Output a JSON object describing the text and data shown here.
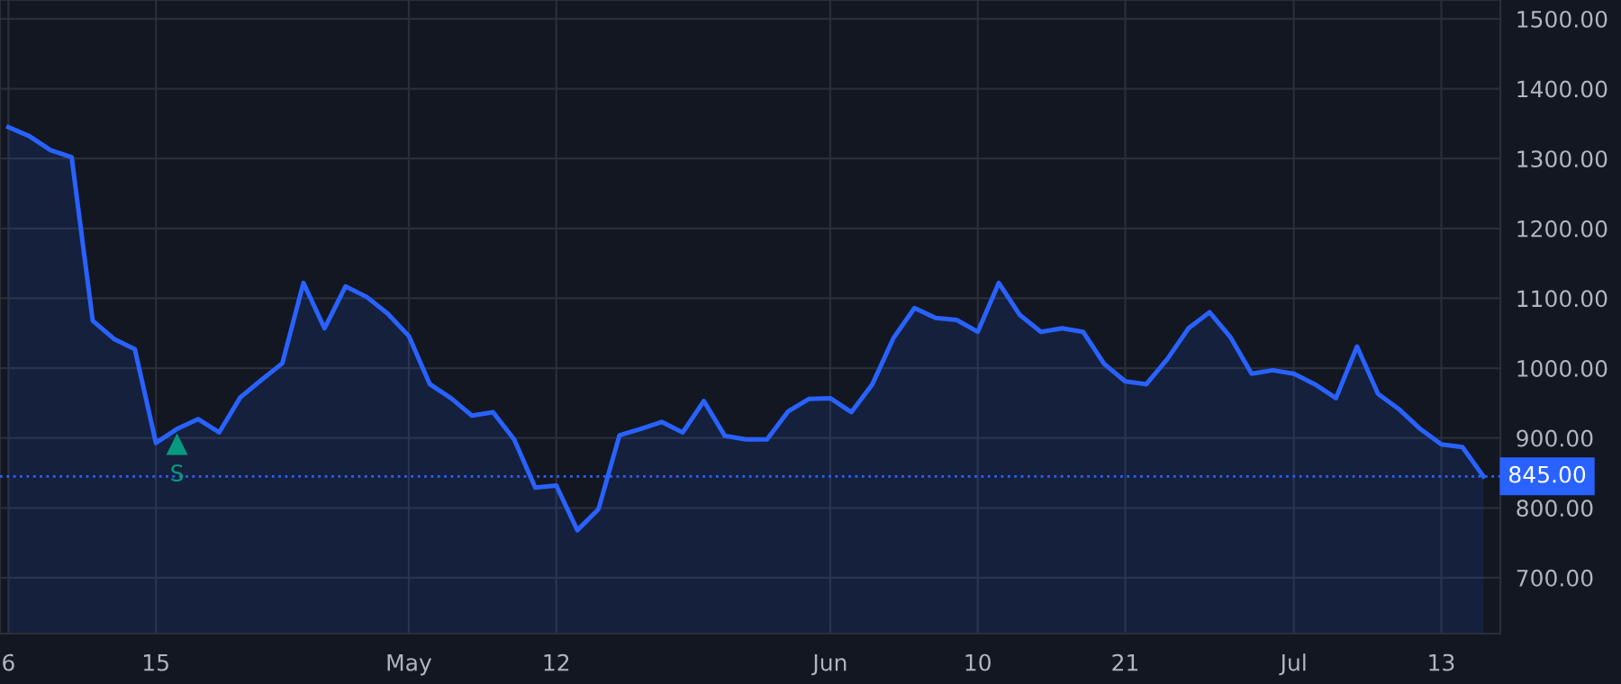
{
  "chart_data": {
    "type": "area",
    "categories": [
      "6",
      null,
      null,
      null,
      null,
      null,
      null,
      "15",
      null,
      null,
      null,
      null,
      null,
      null,
      null,
      null,
      null,
      null,
      null,
      "May",
      null,
      null,
      null,
      null,
      null,
      null,
      "12",
      null,
      null,
      null,
      null,
      null,
      null,
      null,
      null,
      null,
      null,
      null,
      null,
      "Jun",
      null,
      null,
      null,
      null,
      null,
      null,
      "10",
      null,
      null,
      null,
      null,
      null,
      null,
      "21",
      null,
      null,
      null,
      null,
      null,
      null,
      null,
      "Jul",
      null,
      null,
      null,
      null,
      null,
      null,
      "13",
      null,
      null
    ],
    "series": [
      {
        "color": "#2962ff",
        "values": [
          1345,
          1332,
          1312,
          1302,
          1068,
          1042,
          1027,
          893,
          913,
          927,
          908,
          958,
          983,
          1007,
          1122,
          1057,
          1117,
          1102,
          1078,
          1046,
          977,
          957,
          932,
          937,
          898,
          829,
          832,
          768,
          798,
          904,
          913,
          923,
          908,
          953,
          903,
          898,
          898,
          938,
          956,
          957,
          937,
          977,
          1043,
          1086,
          1072,
          1069,
          1052,
          1122,
          1076,
          1052,
          1057,
          1052,
          1006,
          981,
          977,
          1013,
          1057,
          1080,
          1044,
          992,
          997,
          992,
          977,
          957,
          1031,
          963,
          941,
          913,
          891,
          887,
          845
        ]
      },
      {
        "type": "scatter",
        "marker": "triangle",
        "color": "#089981",
        "values": [
          null,
          null,
          null,
          null,
          null,
          null,
          null,
          null,
          890,
          null,
          null,
          null,
          null,
          null,
          null,
          null,
          null,
          null,
          null,
          null,
          null,
          null,
          null,
          null,
          null,
          null,
          null,
          null,
          null,
          null,
          null,
          null,
          null,
          null,
          null,
          null,
          null,
          null,
          null,
          null,
          null,
          null,
          null,
          null,
          null,
          null,
          null,
          null,
          null,
          null,
          null,
          null,
          null,
          null,
          null,
          null,
          null,
          null,
          null,
          null,
          null,
          null,
          null,
          null,
          null,
          null,
          null,
          null,
          null,
          null,
          null
        ]
      }
    ],
    "ylim": [
      620,
      1527
    ],
    "yticks": [
      {
        "value": 700,
        "label": "700.00"
      },
      {
        "value": 800,
        "label": "800.00"
      },
      {
        "value": 900,
        "label": "900.00"
      },
      {
        "value": 1000,
        "label": "1000.00"
      },
      {
        "value": 1100,
        "label": "1100.00"
      },
      {
        "value": 1200,
        "label": "1200.00"
      },
      {
        "value": 1300,
        "label": "1300.00"
      },
      {
        "value": 1400,
        "label": "1400.00"
      },
      {
        "value": 1500,
        "label": "1500.00"
      }
    ],
    "ref_lines": [
      {
        "axis": "y",
        "value": 845,
        "label": "845.00",
        "color": "#2962ff",
        "line_style": "dotted"
      }
    ],
    "annotations": [
      "S"
    ],
    "grid": true
  }
}
